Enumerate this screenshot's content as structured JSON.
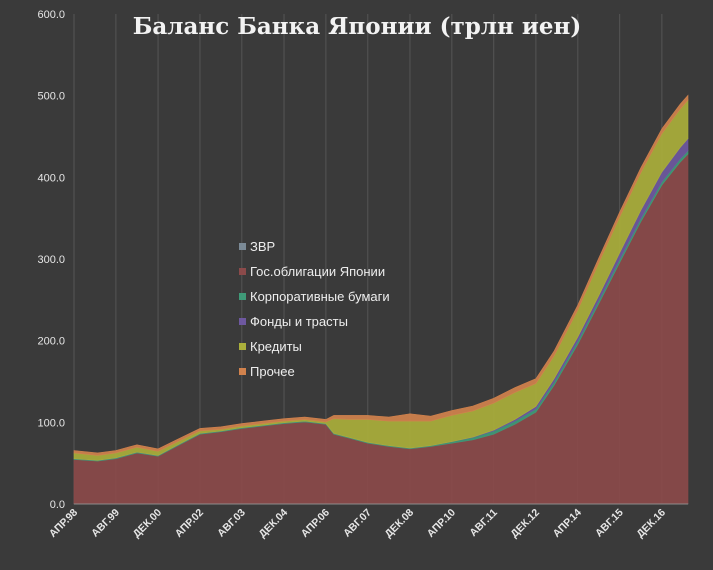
{
  "chart_data": {
    "type": "area",
    "stacked": true,
    "title": "Баланс Банка Японии (трлн иен)",
    "xlabel": "",
    "ylabel": "",
    "ylim": [
      0,
      600
    ],
    "y_ticks": [
      "0.0",
      "100.0",
      "200.0",
      "300.0",
      "400.0",
      "500.0",
      "600.0"
    ],
    "x_tick_labels": [
      "АПР.98",
      "АВГ.99",
      "ДЕК.00",
      "АПР.02",
      "АВГ.03",
      "ДЕК.04",
      "АПР.06",
      "АВГ.07",
      "ДЕК.08",
      "АПР.10",
      "АВГ.11",
      "ДЕК.12",
      "АПР.14",
      "АВГ.15",
      "ДЕК.16"
    ],
    "x_tick_years": [
      1998.25,
      1999.58,
      2000.92,
      2002.25,
      2003.58,
      2004.92,
      2006.25,
      2007.58,
      2008.92,
      2010.25,
      2011.58,
      2012.92,
      2014.25,
      2015.58,
      2016.92
    ],
    "x_range": [
      1998.25,
      2017.75
    ],
    "grid": "vertical",
    "legend_position": "center-left",
    "x": [
      1998.25,
      1999.0,
      1999.58,
      2000.25,
      2000.92,
      2001.5,
      2002.25,
      2002.92,
      2003.58,
      2004.25,
      2004.92,
      2005.58,
      2006.25,
      2006.5,
      2007.0,
      2007.58,
      2008.25,
      2008.92,
      2009.58,
      2010.25,
      2010.92,
      2011.58,
      2012.25,
      2012.92,
      2013.5,
      2014.25,
      2014.92,
      2015.58,
      2016.25,
      2016.92,
      2017.5,
      2017.75
    ],
    "series": [
      {
        "name": "ЗВР",
        "color": "#7b8a96",
        "values": [
          0.5,
          0.5,
          0.5,
          0.5,
          0.5,
          0.5,
          0.5,
          0.5,
          0.5,
          0.5,
          0.5,
          0.5,
          0.5,
          0.5,
          0.5,
          0.5,
          0.5,
          0.5,
          0.5,
          0.5,
          0.5,
          0.5,
          0.5,
          0.5,
          0.5,
          0.5,
          0.5,
          0.5,
          0.5,
          0.5,
          0.5,
          0.5
        ]
      },
      {
        "name": "Гос.облигации Японии",
        "color": "#8b4a4a",
        "values": [
          54,
          52,
          55,
          62,
          58,
          70,
          85,
          88,
          92,
          95,
          98,
          100,
          97,
          85,
          80,
          74,
          70,
          67,
          70,
          74,
          78,
          85,
          97,
          112,
          145,
          195,
          245,
          295,
          345,
          390,
          418,
          428
        ]
      },
      {
        "name": "Корпоративные бумаги",
        "color": "#3f9a78",
        "values": [
          1,
          1,
          1,
          1,
          1,
          1,
          1,
          1,
          1,
          1,
          1,
          1,
          1,
          1,
          1,
          1,
          1,
          1,
          1,
          2,
          3,
          4,
          4,
          4,
          4,
          4,
          4,
          4,
          4,
          4,
          4,
          4
        ]
      },
      {
        "name": "Фонды и трасты",
        "color": "#6e58a0",
        "values": [
          0,
          0,
          0,
          0,
          0,
          0,
          0,
          0,
          0,
          0,
          0,
          0,
          0,
          0,
          0,
          0,
          0,
          0,
          0,
          0,
          0.5,
          1,
          2,
          3,
          4,
          5,
          6,
          8,
          10,
          12,
          14,
          15
        ]
      },
      {
        "name": "Кредиты",
        "color": "#aaaf3b",
        "values": [
          7,
          6,
          6,
          6,
          5,
          4,
          3,
          2,
          2,
          2,
          2,
          2,
          2,
          18,
          22,
          28,
          30,
          33,
          30,
          32,
          32,
          33,
          33,
          28,
          28,
          33,
          40,
          44,
          46,
          47,
          47,
          47
        ]
      },
      {
        "name": "Прочее",
        "color": "#d1824d",
        "values": [
          3,
          3,
          3,
          3,
          3,
          3,
          3,
          3,
          3,
          3,
          3,
          3,
          3,
          4,
          5,
          5,
          5,
          9,
          6,
          6,
          6,
          6,
          6,
          6,
          6,
          6,
          6,
          6,
          6,
          6,
          6,
          6
        ]
      }
    ]
  }
}
